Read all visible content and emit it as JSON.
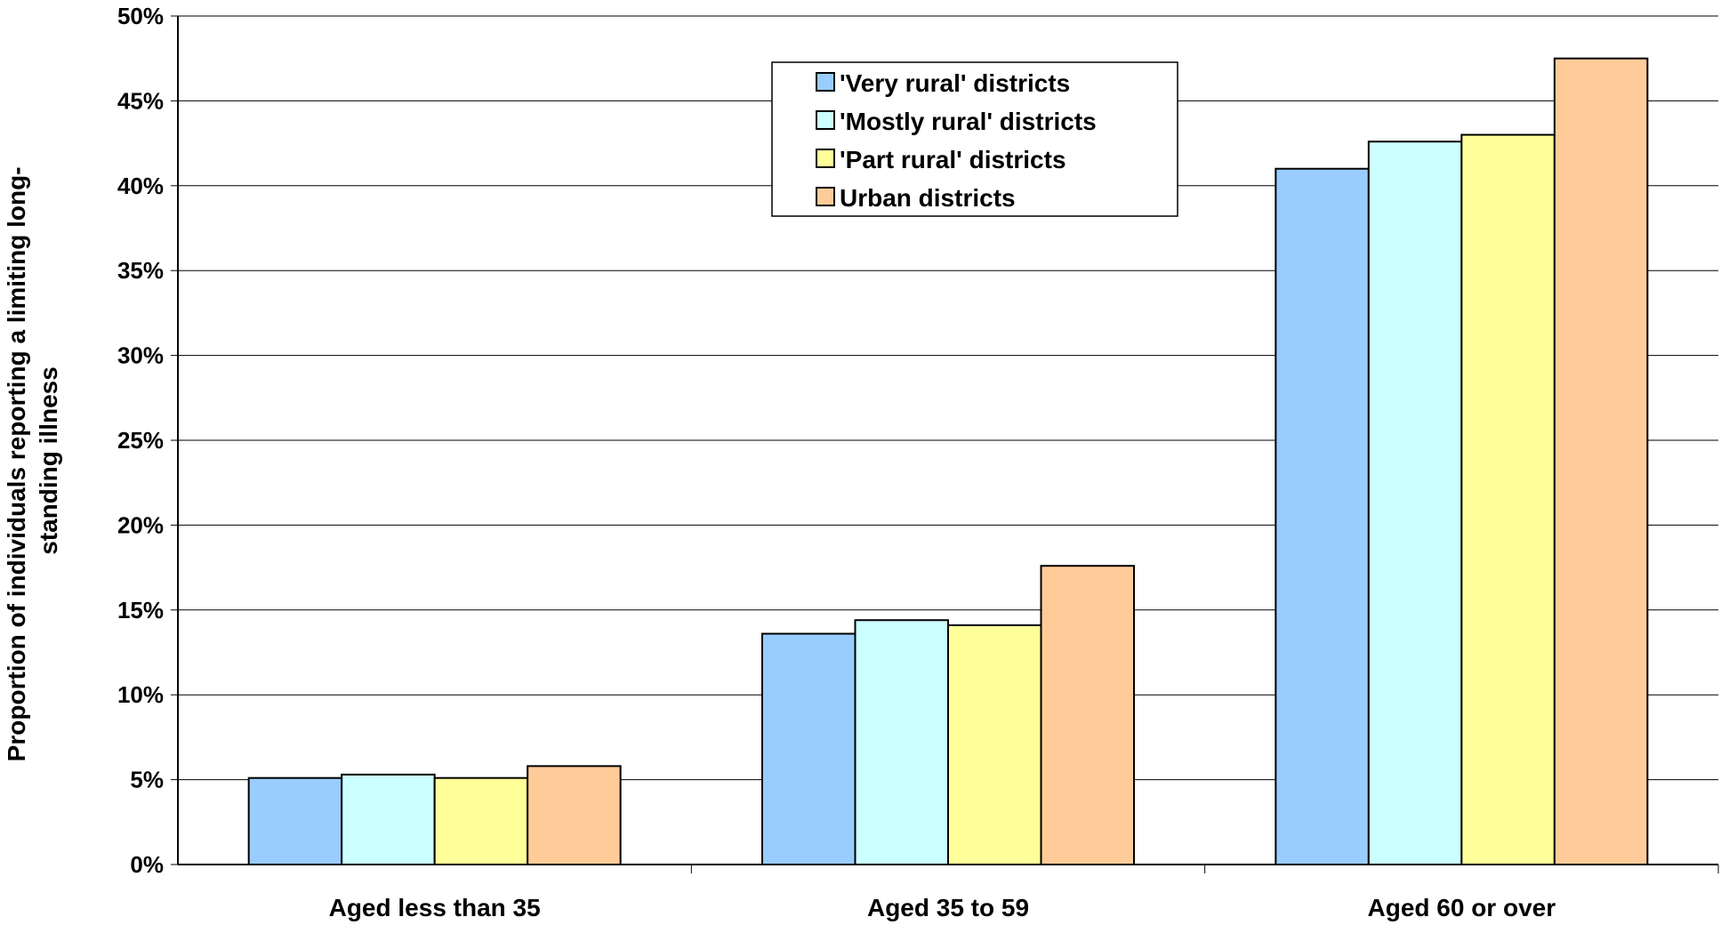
{
  "chart_data": {
    "type": "bar",
    "title": "",
    "xlabel": "",
    "ylabel_lines": [
      "Proportion of individuals reporting a limiting long-",
      "standing illness"
    ],
    "categories": [
      "Aged less than 35",
      "Aged 35 to 59",
      "Aged 60 or over"
    ],
    "ylim": [
      0,
      50
    ],
    "y_ticks": [
      "0%",
      "5%",
      "10%",
      "15%",
      "20%",
      "25%",
      "30%",
      "35%",
      "40%",
      "45%",
      "50%"
    ],
    "grid": true,
    "legend_position": "top-center",
    "series": [
      {
        "name": "'Very rural' districts",
        "color": "#99CCFF",
        "values": [
          5.1,
          13.6,
          41.0
        ]
      },
      {
        "name": "'Mostly rural' districts",
        "color": "#CCFFFF",
        "values": [
          5.3,
          14.4,
          42.6
        ]
      },
      {
        "name": "'Part rural' districts",
        "color": "#FFFF99",
        "values": [
          5.1,
          14.1,
          43.0
        ]
      },
      {
        "name": "Urban districts",
        "color": "#FFCC99",
        "values": [
          5.8,
          17.6,
          47.5
        ]
      }
    ]
  }
}
